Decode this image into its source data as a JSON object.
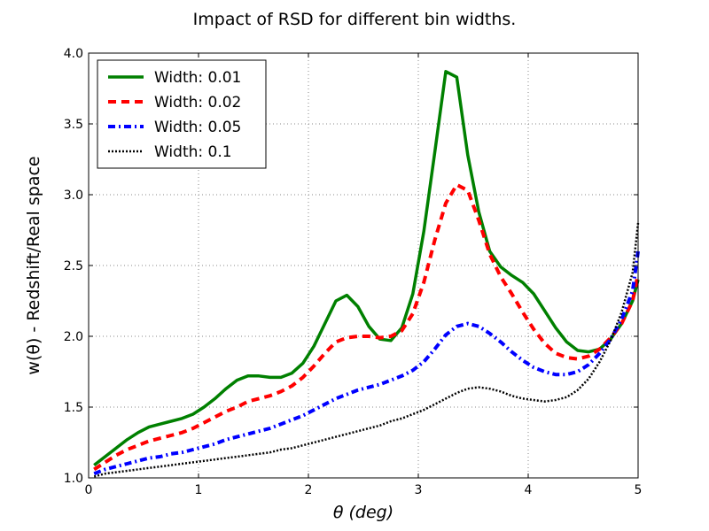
{
  "chart_data": {
    "type": "line",
    "title": "Impact of RSD for different bin widths.",
    "xlabel": "θ (deg)",
    "ylabel": "w(θ) - Redshift/Real space",
    "xlim": [
      0,
      5
    ],
    "ylim": [
      1.0,
      4.0
    ],
    "xticks": [
      0,
      1,
      2,
      3,
      4,
      5
    ],
    "xtick_labels": [
      "0",
      "1",
      "2",
      "3",
      "4",
      "5"
    ],
    "yticks": [
      1.0,
      1.5,
      2.0,
      2.5,
      3.0,
      3.5,
      4.0
    ],
    "ytick_labels": [
      "1.0",
      "1.5",
      "2.0",
      "2.5",
      "3.0",
      "3.5",
      "4.0"
    ],
    "grid": true,
    "legend_position": "top-left",
    "series": [
      {
        "name": "Width: 0.01",
        "color": "#008000",
        "style": "solid",
        "x": [
          0.05,
          0.15,
          0.25,
          0.35,
          0.45,
          0.55,
          0.65,
          0.75,
          0.85,
          0.95,
          1.05,
          1.15,
          1.25,
          1.35,
          1.45,
          1.55,
          1.65,
          1.75,
          1.85,
          1.95,
          2.05,
          2.15,
          2.25,
          2.35,
          2.45,
          2.55,
          2.65,
          2.75,
          2.85,
          2.95,
          3.05,
          3.15,
          3.25,
          3.35,
          3.45,
          3.55,
          3.65,
          3.75,
          3.85,
          3.95,
          4.05,
          4.15,
          4.25,
          4.35,
          4.45,
          4.55,
          4.65,
          4.75,
          4.85,
          4.95,
          5.0
        ],
        "y": [
          1.09,
          1.15,
          1.21,
          1.27,
          1.32,
          1.36,
          1.38,
          1.4,
          1.42,
          1.45,
          1.5,
          1.56,
          1.63,
          1.69,
          1.72,
          1.72,
          1.71,
          1.71,
          1.74,
          1.81,
          1.93,
          2.09,
          2.25,
          2.29,
          2.21,
          2.07,
          1.98,
          1.97,
          2.06,
          2.3,
          2.74,
          3.3,
          3.87,
          3.83,
          3.28,
          2.88,
          2.6,
          2.49,
          2.43,
          2.38,
          2.3,
          2.18,
          2.06,
          1.96,
          1.9,
          1.89,
          1.91,
          1.98,
          2.09,
          2.25,
          2.4
        ]
      },
      {
        "name": "Width: 0.02",
        "color": "#ff0000",
        "style": "dashed",
        "x": [
          0.05,
          0.15,
          0.25,
          0.35,
          0.45,
          0.55,
          0.65,
          0.75,
          0.85,
          0.95,
          1.05,
          1.15,
          1.25,
          1.35,
          1.45,
          1.55,
          1.65,
          1.75,
          1.85,
          1.95,
          2.05,
          2.15,
          2.25,
          2.35,
          2.45,
          2.55,
          2.65,
          2.75,
          2.85,
          2.95,
          3.05,
          3.15,
          3.25,
          3.35,
          3.45,
          3.55,
          3.65,
          3.75,
          3.85,
          3.95,
          4.05,
          4.15,
          4.25,
          4.35,
          4.45,
          4.55,
          4.65,
          4.75,
          4.85,
          4.95,
          5.0
        ],
        "y": [
          1.06,
          1.11,
          1.16,
          1.2,
          1.23,
          1.26,
          1.28,
          1.3,
          1.32,
          1.35,
          1.39,
          1.43,
          1.47,
          1.5,
          1.54,
          1.56,
          1.58,
          1.61,
          1.65,
          1.71,
          1.79,
          1.88,
          1.96,
          1.99,
          2.0,
          2.0,
          1.99,
          2.0,
          2.04,
          2.16,
          2.38,
          2.68,
          2.94,
          3.07,
          3.03,
          2.82,
          2.58,
          2.42,
          2.3,
          2.17,
          2.05,
          1.95,
          1.88,
          1.85,
          1.84,
          1.86,
          1.91,
          1.99,
          2.09,
          2.25,
          2.44
        ]
      },
      {
        "name": "Width: 0.05",
        "color": "#0000ff",
        "style": "dashdot",
        "x": [
          0.05,
          0.15,
          0.25,
          0.35,
          0.45,
          0.55,
          0.65,
          0.75,
          0.85,
          0.95,
          1.05,
          1.15,
          1.25,
          1.35,
          1.45,
          1.55,
          1.65,
          1.75,
          1.85,
          1.95,
          2.05,
          2.15,
          2.25,
          2.35,
          2.45,
          2.55,
          2.65,
          2.75,
          2.85,
          2.95,
          3.05,
          3.15,
          3.25,
          3.35,
          3.45,
          3.55,
          3.65,
          3.75,
          3.85,
          3.95,
          4.05,
          4.15,
          4.25,
          4.35,
          4.45,
          4.55,
          4.65,
          4.75,
          4.85,
          4.95,
          5.0
        ],
        "y": [
          1.03,
          1.06,
          1.08,
          1.1,
          1.12,
          1.14,
          1.15,
          1.17,
          1.18,
          1.2,
          1.22,
          1.24,
          1.27,
          1.29,
          1.31,
          1.33,
          1.35,
          1.38,
          1.41,
          1.44,
          1.48,
          1.52,
          1.56,
          1.59,
          1.62,
          1.64,
          1.66,
          1.69,
          1.72,
          1.76,
          1.82,
          1.91,
          2.01,
          2.07,
          2.09,
          2.07,
          2.02,
          1.96,
          1.89,
          1.83,
          1.78,
          1.75,
          1.73,
          1.73,
          1.75,
          1.8,
          1.88,
          1.98,
          2.12,
          2.32,
          2.6
        ]
      },
      {
        "name": "Width: 0.1",
        "color": "#000000",
        "style": "dotted",
        "x": [
          0.05,
          0.15,
          0.25,
          0.35,
          0.45,
          0.55,
          0.65,
          0.75,
          0.85,
          0.95,
          1.05,
          1.15,
          1.25,
          1.35,
          1.45,
          1.55,
          1.65,
          1.75,
          1.85,
          1.95,
          2.05,
          2.15,
          2.25,
          2.35,
          2.45,
          2.55,
          2.65,
          2.75,
          2.85,
          2.95,
          3.05,
          3.15,
          3.25,
          3.35,
          3.45,
          3.55,
          3.65,
          3.75,
          3.85,
          3.95,
          4.05,
          4.15,
          4.25,
          4.35,
          4.45,
          4.55,
          4.65,
          4.75,
          4.85,
          4.95,
          5.0
        ],
        "y": [
          1.01,
          1.03,
          1.04,
          1.05,
          1.06,
          1.07,
          1.08,
          1.09,
          1.1,
          1.11,
          1.12,
          1.13,
          1.14,
          1.15,
          1.16,
          1.17,
          1.18,
          1.2,
          1.21,
          1.23,
          1.25,
          1.27,
          1.29,
          1.31,
          1.33,
          1.35,
          1.37,
          1.4,
          1.42,
          1.45,
          1.48,
          1.52,
          1.56,
          1.6,
          1.63,
          1.64,
          1.63,
          1.61,
          1.58,
          1.56,
          1.55,
          1.54,
          1.55,
          1.57,
          1.62,
          1.7,
          1.82,
          1.97,
          2.17,
          2.45,
          2.8
        ]
      }
    ]
  }
}
